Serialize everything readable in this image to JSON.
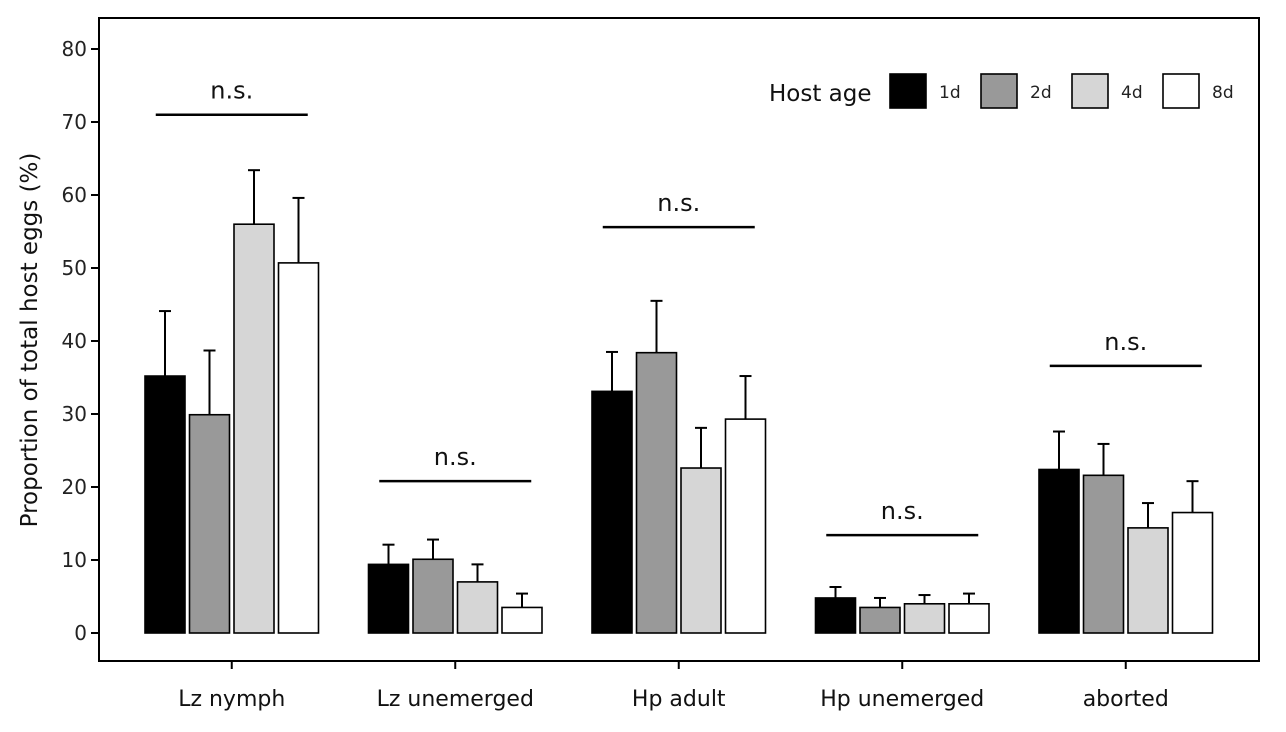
{
  "chart_data": {
    "type": "bar",
    "ylabel": "Proportion of total host eggs (%)",
    "xlabel": "",
    "ylim": [
      0,
      80
    ],
    "yticks": [
      0,
      10,
      20,
      30,
      40,
      50,
      60,
      70,
      80
    ],
    "grid": false,
    "categories": [
      "Lz nymph",
      "Lz unemerged",
      "Hp adult",
      "Hp unemerged",
      "aborted"
    ],
    "legend": {
      "title": "Host age",
      "placement": "top-right"
    },
    "series": [
      {
        "name": "1d",
        "color": "#000000",
        "values": [
          35.2,
          9.4,
          33.1,
          4.8,
          22.4
        ],
        "errors": [
          8.9,
          2.7,
          5.4,
          1.5,
          5.2
        ]
      },
      {
        "name": "2d",
        "color": "#999999",
        "values": [
          29.9,
          10.1,
          38.4,
          3.5,
          21.6
        ],
        "errors": [
          8.8,
          2.7,
          7.1,
          1.3,
          4.3
        ]
      },
      {
        "name": "4d",
        "color": "#d6d6d6",
        "values": [
          56.0,
          7.0,
          22.6,
          4.0,
          14.4
        ],
        "errors": [
          7.4,
          2.4,
          5.5,
          1.2,
          3.4
        ]
      },
      {
        "name": "8d",
        "color": "#ffffff",
        "values": [
          50.7,
          3.5,
          29.3,
          4.0,
          16.5
        ],
        "errors": [
          8.9,
          1.9,
          5.9,
          1.4,
          4.3
        ]
      }
    ],
    "annotations": [
      {
        "text": "n.s.",
        "category_index": 0,
        "y": 71
      },
      {
        "text": "n.s.",
        "category_index": 1,
        "y": 20.8
      },
      {
        "text": "n.s.",
        "category_index": 2,
        "y": 55.6
      },
      {
        "text": "n.s.",
        "category_index": 3,
        "y": 13.4
      },
      {
        "text": "n.s.",
        "category_index": 4,
        "y": 36.6
      }
    ]
  }
}
